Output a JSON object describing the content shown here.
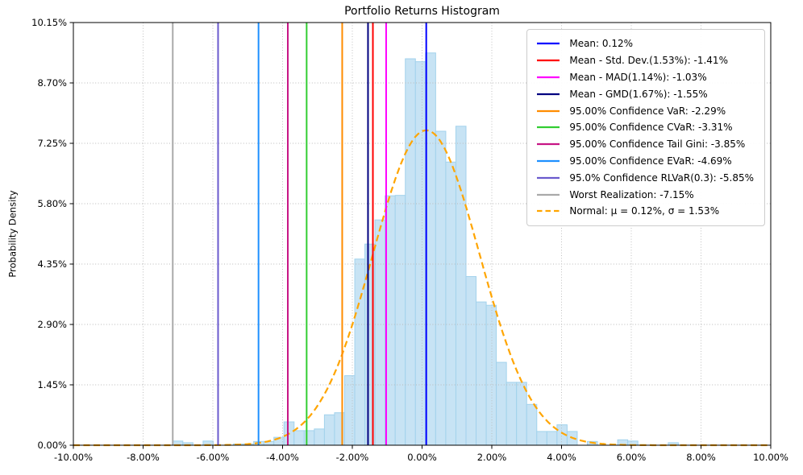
{
  "chart_data": {
    "type": "bar",
    "subtype": "histogram",
    "title": "Portfolio Returns Histogram",
    "xlabel": "",
    "ylabel": "Probability Density",
    "xlim": [
      -10,
      10
    ],
    "ylim": [
      0,
      10.15
    ],
    "grid": true,
    "legend_position": "upper right",
    "bar_fill": "#c7e3f4",
    "bar_edge": "#a2d2ec",
    "x_ticks": [
      {
        "value": -10,
        "label": "-10.00%"
      },
      {
        "value": -8,
        "label": "-8.00%"
      },
      {
        "value": -6,
        "label": "-6.00%"
      },
      {
        "value": -4,
        "label": "-4.00%"
      },
      {
        "value": -2,
        "label": "-2.00%"
      },
      {
        "value": 0,
        "label": "0.00%"
      },
      {
        "value": 2,
        "label": "2.00%"
      },
      {
        "value": 4,
        "label": "4.00%"
      },
      {
        "value": 6,
        "label": "6.00%"
      },
      {
        "value": 8,
        "label": "8.00%"
      },
      {
        "value": 10,
        "label": "10.00%"
      }
    ],
    "y_ticks": [
      {
        "value": 0,
        "label": "0.00%"
      },
      {
        "value": 1.45,
        "label": "1.45%"
      },
      {
        "value": 2.9,
        "label": "2.90%"
      },
      {
        "value": 4.35,
        "label": "4.35%"
      },
      {
        "value": 5.8,
        "label": "5.80%"
      },
      {
        "value": 7.25,
        "label": "7.25%"
      },
      {
        "value": 8.7,
        "label": "8.70%"
      },
      {
        "value": 10.15,
        "label": "10.15%"
      }
    ],
    "bins": {
      "start": -7.15,
      "width": 0.29,
      "heights": [
        0.1,
        0.06,
        0,
        0.1,
        0,
        0,
        0.03,
        0.03,
        0.09,
        0.09,
        0.19,
        0.56,
        0.35,
        0.35,
        0.39,
        0.73,
        0.78,
        1.67,
        4.47,
        4.83,
        5.41,
        5.99,
        6.0,
        9.28,
        9.21,
        9.42,
        7.54,
        6.8,
        7.66,
        4.05,
        3.44,
        3.36,
        1.99,
        1.51,
        1.51,
        0.98,
        0.33,
        0.33,
        0.49,
        0.33,
        0,
        0.09,
        0,
        0,
        0.13,
        0.1,
        0,
        0,
        0,
        0.06
      ]
    },
    "vlines": [
      {
        "name": "mean-line",
        "label": "Mean: 0.12%",
        "value": 0.12,
        "color": "#0000FF"
      },
      {
        "name": "mean-minus-std-line",
        "label": "Mean - Std. Dev.(1.53%): -1.41%",
        "value": -1.41,
        "color": "#FF0000"
      },
      {
        "name": "mean-minus-mad-line",
        "label": "Mean - MAD(1.14%): -1.03%",
        "value": -1.03,
        "color": "#FF00FF"
      },
      {
        "name": "mean-minus-gmd-line",
        "label": "Mean - GMD(1.67%): -1.55%",
        "value": -1.55,
        "color": "#000080"
      },
      {
        "name": "var-line",
        "label": "95.00% Confidence VaR: -2.29%",
        "value": -2.29,
        "color": "#FF8C00"
      },
      {
        "name": "cvar-line",
        "label": "95.00% Confidence CVaR: -3.31%",
        "value": -3.31,
        "color": "#32CD32"
      },
      {
        "name": "tail-gini-line",
        "label": "95.00% Confidence Tail Gini: -3.85%",
        "value": -3.85,
        "color": "#C71585"
      },
      {
        "name": "evar-line",
        "label": "95.00% Confidence EVaR: -4.69%",
        "value": -4.69,
        "color": "#1E90FF"
      },
      {
        "name": "rlvar-line",
        "label": "95.0% Confidence RLVaR(0.3): -5.85%",
        "value": -5.85,
        "color": "#6A5ACD"
      },
      {
        "name": "worst-realization-line",
        "label": "Worst Realization: -7.15%",
        "value": -7.15,
        "color": "#A9A9A9"
      }
    ],
    "normal_curve": {
      "label": "Normal: μ = 0.12%, σ = 1.53%",
      "mu": 0.12,
      "sigma": 1.53,
      "color": "#FFA500",
      "style": "dashed"
    }
  }
}
